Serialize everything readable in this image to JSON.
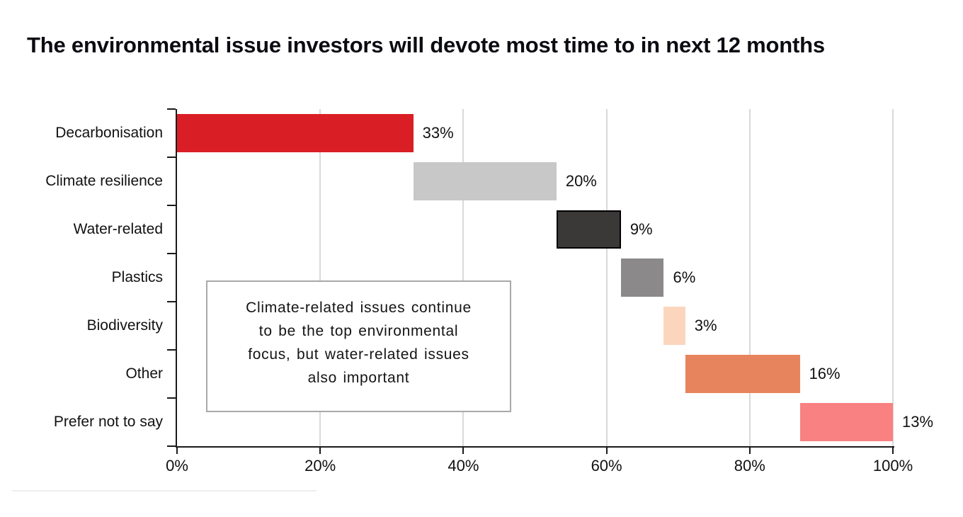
{
  "chart_data": {
    "type": "bar",
    "subtype": "waterfall",
    "orientation": "horizontal",
    "title": "The environmental issue investors will devote most time to in next 12 months",
    "categories": [
      "Decarbonisation",
      "Climate resilience",
      "Water-related",
      "Plastics",
      "Biodiversity",
      "Other",
      "Prefer not to say"
    ],
    "values": [
      33,
      20,
      9,
      6,
      3,
      16,
      13
    ],
    "value_labels": [
      "33%",
      "20%",
      "9%",
      "6%",
      "3%",
      "16%",
      "13%"
    ],
    "cumulative_starts": [
      0,
      33,
      53,
      62,
      68,
      71,
      87
    ],
    "bar_colors": [
      "#d91f25",
      "#c8c8c8",
      "#3b3838",
      "#8b8989",
      "#fbd6bd",
      "#e7845e",
      "#f98181"
    ],
    "bar_border_colors": [
      "none",
      "none",
      "#000000",
      "none",
      "none",
      "none",
      "none"
    ],
    "xlabel": "",
    "ylabel": "",
    "xlim": [
      0,
      100
    ],
    "x_tick_values": [
      0,
      20,
      40,
      60,
      80,
      100
    ],
    "x_tick_labels": [
      "0%",
      "20%",
      "40%",
      "60%",
      "80%",
      "100%"
    ],
    "grid": "vertical gridlines on",
    "legend": "none",
    "axis_color": "#1a1a1a",
    "gridline_color": "#d9d9d9",
    "annotation": {
      "lines": [
        "Climate-related issues continue",
        "to be the top environmental",
        "focus, but water-related issues",
        "also important"
      ],
      "border_color": "#a9a9a9"
    }
  }
}
